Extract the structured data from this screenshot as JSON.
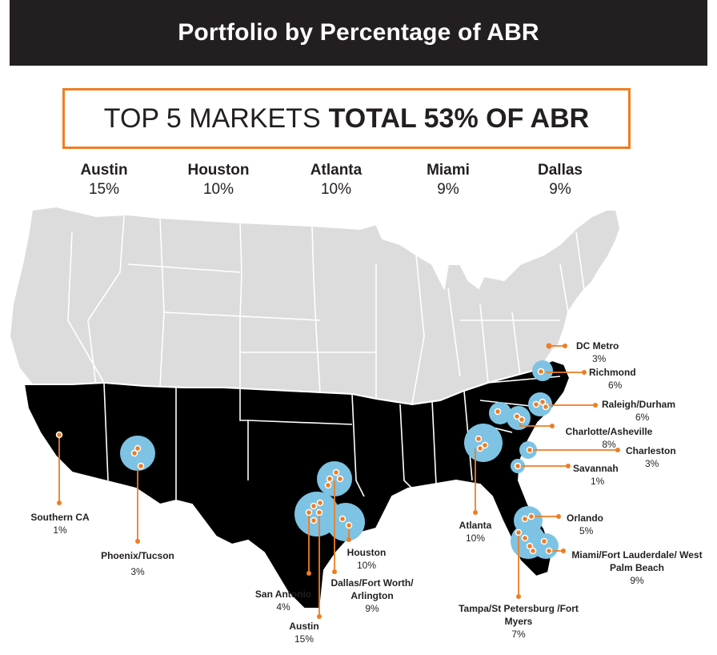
{
  "header": {
    "title": "Portfolio by Percentage of ABR"
  },
  "headline": {
    "normal": "TOP 5 MARKETS",
    "bold": "TOTAL 53% OF ABR",
    "border_color": "#ef7d22"
  },
  "top_markets": [
    {
      "name": "Austin",
      "pct": "15%"
    },
    {
      "name": "Houston",
      "pct": "10%"
    },
    {
      "name": "Atlanta",
      "pct": "10%"
    },
    {
      "name": "Miami",
      "pct": "9%"
    },
    {
      "name": "Dallas",
      "pct": "9%"
    }
  ],
  "colors": {
    "bubble": "#7ec3e3",
    "leader": "#ef7d22",
    "state_gray": "#dcdcdc",
    "state_black": "#000000",
    "header": "#231f20"
  },
  "markets": [
    {
      "key": "dc-metro",
      "name": "DC Metro",
      "pct": "3%"
    },
    {
      "key": "richmond",
      "name": "Richmond",
      "pct": "6%"
    },
    {
      "key": "raleigh-durham",
      "name": "Raleigh/Durham",
      "pct": "6%"
    },
    {
      "key": "charlotte-asheville",
      "name": "Charlotte/Asheville",
      "pct": "8%"
    },
    {
      "key": "charleston",
      "name": "Charleston",
      "pct": "3%"
    },
    {
      "key": "savannah",
      "name": "Savannah",
      "pct": "1%"
    },
    {
      "key": "orlando",
      "name": "Orlando",
      "pct": "5%"
    },
    {
      "key": "miami",
      "name": "Miami/Fort Lauderdale/ West Palm Beach",
      "pct": "9%"
    },
    {
      "key": "tampa",
      "name": "Tampa/St Petersburg /Fort Myers",
      "pct": "7%"
    },
    {
      "key": "atlanta",
      "name": "Atlanta",
      "pct": "10%"
    },
    {
      "key": "houston",
      "name": "Houston",
      "pct": "10%"
    },
    {
      "key": "dallas",
      "name": "Dallas/Fort Worth/ Arlington",
      "pct": "9%"
    },
    {
      "key": "austin",
      "name": "Austin",
      "pct": "15%"
    },
    {
      "key": "san-antonio",
      "name": "San Antonio",
      "pct": "4%"
    },
    {
      "key": "phoenix",
      "name": "Phoenix/Tucson",
      "pct": "3%"
    },
    {
      "key": "southern-ca",
      "name": "Southern CA",
      "pct": "1%"
    }
  ]
}
